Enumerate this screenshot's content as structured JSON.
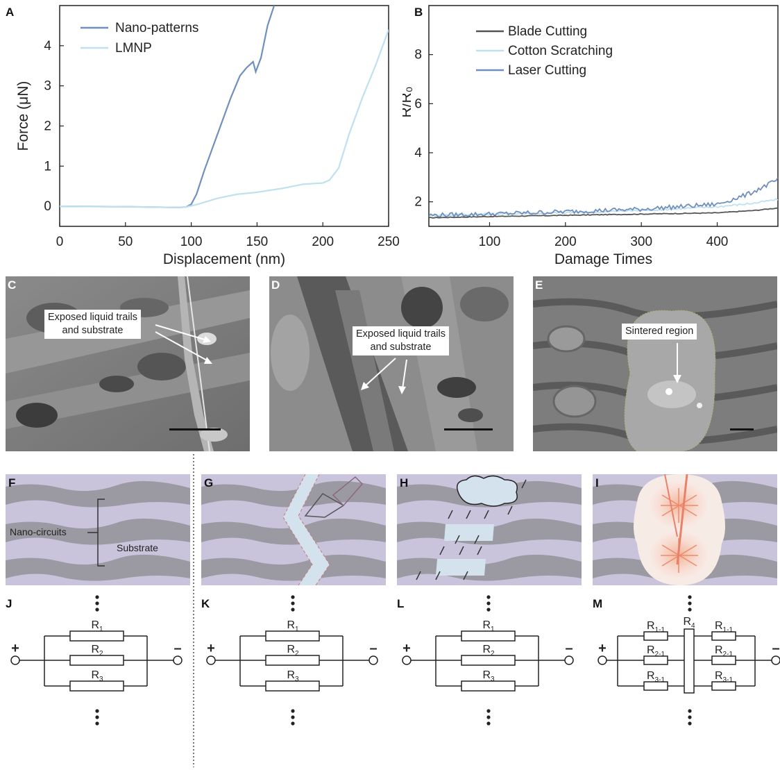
{
  "panel_labels": {
    "a": "A",
    "b": "B",
    "c": "C",
    "d": "D",
    "e": "E",
    "f": "F",
    "g": "G",
    "h": "H",
    "i": "I",
    "j": "J",
    "k": "K",
    "l": "L",
    "m": "M"
  },
  "chart_data": [
    {
      "type": "line",
      "xlabel": "Displacement (nm)",
      "ylabel": "Force (μN)",
      "xlim": [
        0,
        250
      ],
      "ylim": [
        -0.5,
        5
      ],
      "xticks": [
        0,
        50,
        100,
        150,
        200,
        250
      ],
      "yticks": [
        0,
        1,
        2,
        3,
        4
      ],
      "legend_position": "top-left",
      "series": [
        {
          "name": "Nano-patterns",
          "color": "#6f8fbf",
          "x": [
            0,
            50,
            90,
            96,
            100,
            104,
            110,
            120,
            130,
            137,
            142,
            147,
            149,
            153,
            158,
            163
          ],
          "y": [
            0,
            -0.01,
            -0.03,
            -0.02,
            0.05,
            0.3,
            0.9,
            1.8,
            2.7,
            3.25,
            3.45,
            3.6,
            3.35,
            3.7,
            4.5,
            5.0
          ]
        },
        {
          "name": "LMNP",
          "color": "#bfe0ee",
          "x": [
            0,
            50,
            90,
            96,
            105,
            120,
            135,
            150,
            170,
            185,
            200,
            205,
            212,
            220,
            230,
            240,
            250
          ],
          "y": [
            0,
            -0.01,
            -0.03,
            -0.02,
            0.05,
            0.2,
            0.3,
            0.35,
            0.45,
            0.55,
            0.58,
            0.65,
            0.95,
            1.8,
            2.7,
            3.5,
            4.4
          ]
        }
      ]
    },
    {
      "type": "line",
      "xlabel": "Damage Times",
      "ylabel": "R/R₀",
      "xlim": [
        20,
        480
      ],
      "ylim": [
        1,
        10
      ],
      "xticks": [
        100,
        200,
        300,
        400
      ],
      "yticks": [
        2,
        4,
        6,
        8
      ],
      "legend_position": "top-left",
      "series": [
        {
          "name": "Blade Cutting",
          "color": "#555555",
          "x": [
            20,
            100,
            200,
            300,
            400,
            450,
            480
          ],
          "y": [
            1.35,
            1.4,
            1.45,
            1.5,
            1.55,
            1.65,
            1.75
          ]
        },
        {
          "name": "Cotton Scratching",
          "color": "#bfe0ee",
          "x": [
            20,
            100,
            200,
            300,
            400,
            450,
            480
          ],
          "y": [
            1.45,
            1.5,
            1.55,
            1.65,
            1.8,
            1.95,
            2.1
          ]
        },
        {
          "name": "Laser Cutting",
          "color": "#6f8fbf",
          "x": [
            20,
            100,
            200,
            300,
            400,
            440,
            460,
            480
          ],
          "y": [
            1.45,
            1.5,
            1.6,
            1.7,
            1.9,
            2.3,
            2.6,
            2.9
          ]
        }
      ]
    }
  ],
  "micrographs": {
    "c_label": "Exposed liquid trails\nand substrate",
    "d_label": "Exposed liquid trails\nand substrate",
    "e_label": "Sintered region"
  },
  "schematic_f": {
    "nano_circuits": "Nano-circuits",
    "substrate": "Substrate"
  },
  "circuits": {
    "plus": "+",
    "minus": "–",
    "dots": "⋮",
    "parallel_resistors": [
      [
        "R",
        "1"
      ],
      [
        "R",
        "2"
      ],
      [
        "R",
        "3"
      ]
    ],
    "m_left": [
      [
        "R",
        "1-1"
      ],
      [
        "R",
        "2-1"
      ],
      [
        "R",
        "3-1"
      ]
    ],
    "m_center": [
      "R",
      "4"
    ],
    "m_right": [
      [
        "R",
        "1-1"
      ],
      [
        "R",
        "2-1"
      ],
      [
        "R",
        "3-1"
      ]
    ]
  }
}
